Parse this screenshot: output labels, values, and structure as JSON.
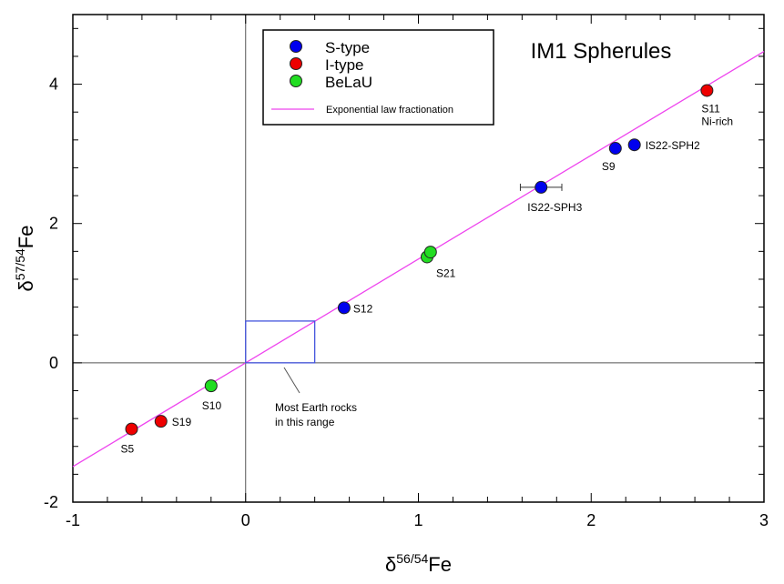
{
  "chart_data": {
    "type": "scatter",
    "title": "IM1 Spherules",
    "xlabel": {
      "base": "δ",
      "sup": "56/54",
      "tail": "Fe"
    },
    "ylabel": {
      "base": "δ",
      "sup": "57/54",
      "tail": "Fe"
    },
    "xlim": [
      -1,
      3
    ],
    "ylim": [
      -2,
      5
    ],
    "xticks": [
      -1,
      0,
      1,
      2,
      3
    ],
    "yticks": [
      -2,
      0,
      2,
      4
    ],
    "x_minor_step": 0.2,
    "y_minor_step": 0.4,
    "grid": false,
    "legend_position": "top-center",
    "series": [
      {
        "name": "S-type",
        "color": "#0000ee",
        "points": [
          {
            "x": 0.57,
            "y": 0.79,
            "label": "S12"
          },
          {
            "x": 1.71,
            "y": 2.52,
            "label": "IS22-SPH3",
            "xerr": 0.12
          },
          {
            "x": 2.14,
            "y": 3.08,
            "label": "S9"
          },
          {
            "x": 2.25,
            "y": 3.13,
            "label": "IS22-SPH2"
          }
        ]
      },
      {
        "name": "I-type",
        "color": "#ee0000",
        "points": [
          {
            "x": -0.66,
            "y": -0.95,
            "label": "S5"
          },
          {
            "x": -0.49,
            "y": -0.84,
            "label": "S19"
          },
          {
            "x": 2.67,
            "y": 3.91,
            "label": "S11",
            "label2": "Ni-rich"
          }
        ]
      },
      {
        "name": "BeLaU",
        "color": "#22dd22",
        "points": [
          {
            "x": -0.2,
            "y": -0.33,
            "label": "S10"
          },
          {
            "x": 1.05,
            "y": 1.52,
            "label": "S21"
          },
          {
            "x": 1.07,
            "y": 1.59,
            "label": ""
          }
        ]
      }
    ],
    "line": {
      "name": "Exponential law fractionation",
      "color": "#ee44ee",
      "slope": 1.49,
      "intercept": 0
    },
    "annotation": {
      "lines": [
        "Most Earth rocks",
        "in this range"
      ],
      "box": {
        "x": [
          0,
          0.4
        ],
        "y": [
          0,
          0.6
        ]
      },
      "color": "#4455dd"
    }
  }
}
